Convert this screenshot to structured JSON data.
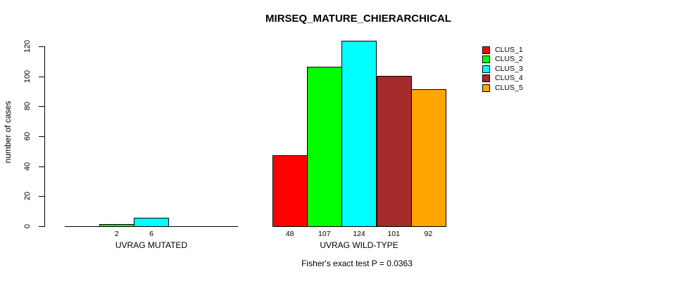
{
  "chart_data": {
    "type": "bar",
    "title": "MIRSEQ_MATURE_CHIERARCHICAL",
    "ylabel": "number of cases",
    "ylim": [
      0,
      120
    ],
    "yticks": [
      0,
      20,
      40,
      60,
      80,
      100,
      120
    ],
    "grid": false,
    "legend_position": "top-right",
    "series_labels": [
      "CLUS_1",
      "CLUS_2",
      "CLUS_3",
      "CLUS_4",
      "CLUS_5"
    ],
    "series_colors": [
      "#FF0000",
      "#00FF00",
      "#00FFFF",
      "#A52A2A",
      "#FFA500"
    ],
    "groups": [
      {
        "label": "UVRAG MUTATED",
        "values": [
          0,
          2,
          6,
          0,
          0
        ],
        "bar_labels": [
          "",
          "2",
          "6",
          "",
          ""
        ]
      },
      {
        "label": "UVRAG WILD-TYPE",
        "values": [
          48,
          107,
          124,
          101,
          92
        ],
        "bar_labels": [
          "48",
          "107",
          "124",
          "101",
          "92"
        ]
      }
    ],
    "annotation": "Fisher's exact test P = 0.0363"
  }
}
